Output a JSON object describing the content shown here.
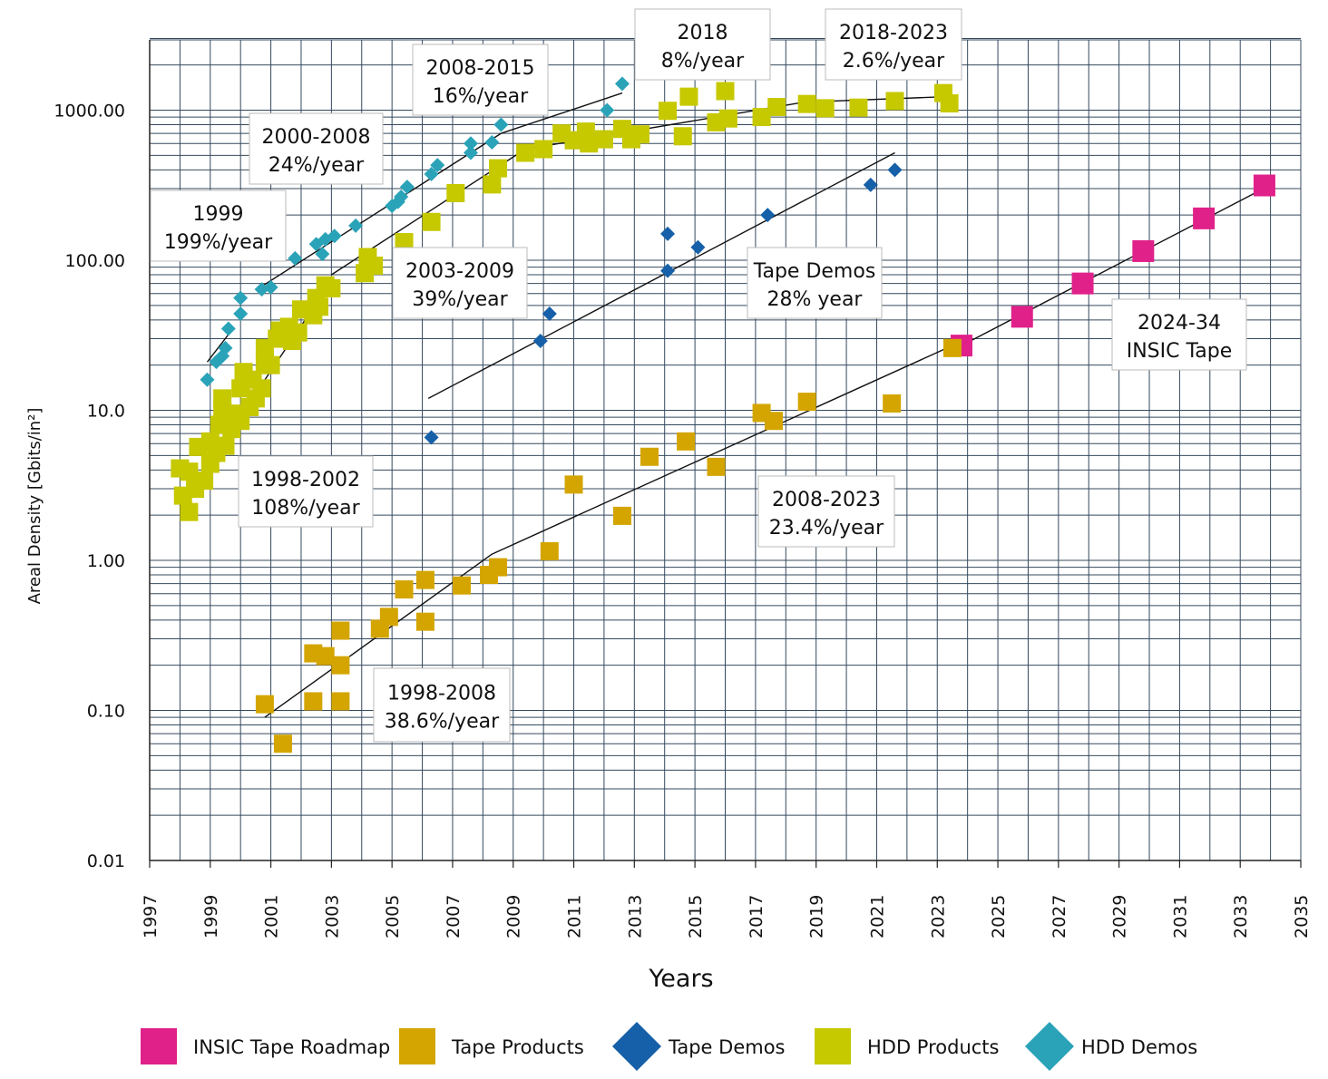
{
  "chart_data": {
    "type": "scatter",
    "title": "",
    "xlabel": "Years",
    "ylabel": "Areal Density [Gbits/in²]",
    "yscale": "log",
    "xlim": [
      1997,
      2035
    ],
    "ylim": [
      0.01,
      3000
    ],
    "grid": true,
    "legend_position": "bottom",
    "x_ticks": [
      1997,
      1999,
      2001,
      2003,
      2005,
      2007,
      2009,
      2011,
      2013,
      2015,
      2017,
      2019,
      2021,
      2023,
      2025,
      2027,
      2029,
      2031,
      2033,
      2035
    ],
    "y_ticks": [
      {
        "value": 0.01,
        "label": "0.01"
      },
      {
        "value": 0.1,
        "label": "0.10"
      },
      {
        "value": 1,
        "label": "1.00"
      },
      {
        "value": 10,
        "label": "10.0"
      },
      {
        "value": 100,
        "label": "100.00"
      },
      {
        "value": 1000,
        "label": "1000.00"
      }
    ],
    "series": [
      {
        "name": "INSIC Tape Roadmap",
        "color": "#e0218a",
        "marker": "square",
        "points": [
          [
            2023.8,
            27
          ],
          [
            2025.8,
            42
          ],
          [
            2027.8,
            70
          ],
          [
            2029.8,
            115
          ],
          [
            2031.8,
            190
          ],
          [
            2033.8,
            315
          ]
        ]
      },
      {
        "name": "Tape Products",
        "color": "#d4a500",
        "marker": "square",
        "points": [
          [
            2000.8,
            0.11
          ],
          [
            2001.4,
            0.06
          ],
          [
            2002.4,
            0.24
          ],
          [
            2002.4,
            0.115
          ],
          [
            2002.8,
            0.23
          ],
          [
            2003.3,
            0.2
          ],
          [
            2003.3,
            0.115
          ],
          [
            2003.3,
            0.34
          ],
          [
            2004.6,
            0.35
          ],
          [
            2004.9,
            0.42
          ],
          [
            2005.4,
            0.64
          ],
          [
            2006.1,
            0.74
          ],
          [
            2006.1,
            0.39
          ],
          [
            2007.3,
            0.68
          ],
          [
            2008.2,
            0.8
          ],
          [
            2008.5,
            0.9
          ],
          [
            2010.2,
            1.15
          ],
          [
            2011.0,
            3.2
          ],
          [
            2012.6,
            1.98
          ],
          [
            2013.5,
            4.9
          ],
          [
            2014.7,
            6.2
          ],
          [
            2015.7,
            4.2
          ],
          [
            2017.2,
            9.6
          ],
          [
            2017.6,
            8.5
          ],
          [
            2018.7,
            11.4
          ],
          [
            2021.5,
            11.1
          ],
          [
            2023.5,
            26
          ]
        ]
      },
      {
        "name": "Tape Demos",
        "color": "#1560a8",
        "marker": "diamond",
        "points": [
          [
            2006.3,
            6.6
          ],
          [
            2009.9,
            29
          ],
          [
            2010.2,
            44
          ],
          [
            2014.1,
            150
          ],
          [
            2014.1,
            85
          ],
          [
            2015.1,
            122
          ],
          [
            2017.4,
            200
          ],
          [
            2020.8,
            318
          ],
          [
            2021.6,
            400
          ]
        ]
      },
      {
        "name": "HDD Products",
        "color": "#c6c800",
        "marker": "square",
        "points": [
          [
            1998.0,
            4.1
          ],
          [
            1998.1,
            2.7
          ],
          [
            1998.3,
            2.1
          ],
          [
            1998.3,
            3.9
          ],
          [
            1998.5,
            3.0
          ],
          [
            1998.6,
            5.7
          ],
          [
            1998.8,
            3.4
          ],
          [
            1999.0,
            4.4
          ],
          [
            1999.0,
            6.2
          ],
          [
            1999.2,
            5.2
          ],
          [
            1999.3,
            8.0
          ],
          [
            1999.4,
            10.0
          ],
          [
            1999.4,
            12.0
          ],
          [
            1999.5,
            5.8
          ],
          [
            1999.7,
            7.5
          ],
          [
            1999.8,
            9.5
          ],
          [
            2000.0,
            8.5
          ],
          [
            2000.0,
            14.0
          ],
          [
            2000.1,
            18.0
          ],
          [
            2000.3,
            10.5
          ],
          [
            2000.4,
            16.0
          ],
          [
            2000.5,
            12.0
          ],
          [
            2000.7,
            14.0
          ],
          [
            2000.8,
            21.0
          ],
          [
            2000.8,
            26.0
          ],
          [
            2001.0,
            20.0
          ],
          [
            2001.2,
            30.0
          ],
          [
            2001.3,
            34.0
          ],
          [
            2001.6,
            36.0
          ],
          [
            2001.7,
            29.0
          ],
          [
            2001.9,
            33.0
          ],
          [
            2002.0,
            47.0
          ],
          [
            2002.4,
            43.0
          ],
          [
            2002.5,
            56.0
          ],
          [
            2002.6,
            49.0
          ],
          [
            2002.8,
            68.0
          ],
          [
            2003.0,
            65.0
          ],
          [
            2004.1,
            82.0
          ],
          [
            2004.2,
            105.0
          ],
          [
            2004.4,
            92.0
          ],
          [
            2005.4,
            132.0
          ],
          [
            2006.3,
            180.0
          ],
          [
            2007.1,
            280.0
          ],
          [
            2008.3,
            320.0
          ],
          [
            2008.5,
            410.0
          ],
          [
            2009.4,
            520.0
          ],
          [
            2010.0,
            550.0
          ],
          [
            2010.6,
            700.0
          ],
          [
            2011.0,
            630.0
          ],
          [
            2011.4,
            720.0
          ],
          [
            2011.5,
            600.0
          ],
          [
            2012.0,
            640.0
          ],
          [
            2012.6,
            750.0
          ],
          [
            2012.9,
            640.0
          ],
          [
            2013.2,
            690.0
          ],
          [
            2014.1,
            990.0
          ],
          [
            2014.6,
            670.0
          ],
          [
            2014.8,
            1230.0
          ],
          [
            2015.7,
            830.0
          ],
          [
            2016.0,
            1340.0
          ],
          [
            2016.1,
            880.0
          ],
          [
            2017.2,
            900.0
          ],
          [
            2017.7,
            1050.0
          ],
          [
            2018.7,
            1100.0
          ],
          [
            2019.3,
            1030.0
          ],
          [
            2020.4,
            1040.0
          ],
          [
            2021.6,
            1150.0
          ],
          [
            2023.2,
            1300.0
          ],
          [
            2023.4,
            1110.0
          ]
        ]
      },
      {
        "name": "HDD Demos",
        "color": "#2aa3b8",
        "marker": "diamond",
        "points": [
          [
            1998.9,
            16.0
          ],
          [
            1999.2,
            21.0
          ],
          [
            1999.4,
            23.0
          ],
          [
            1999.5,
            26.0
          ],
          [
            1999.6,
            35.0
          ],
          [
            2000.0,
            44.0
          ],
          [
            2000.0,
            56.0
          ],
          [
            2000.7,
            64.0
          ],
          [
            2001.0,
            66.0
          ],
          [
            2001.8,
            103.0
          ],
          [
            2002.5,
            128.0
          ],
          [
            2002.7,
            110.0
          ],
          [
            2002.8,
            138.0
          ],
          [
            2003.1,
            145.0
          ],
          [
            2003.8,
            170.0
          ],
          [
            2005.0,
            230.0
          ],
          [
            2005.2,
            245.0
          ],
          [
            2005.3,
            265.0
          ],
          [
            2005.5,
            308.0
          ],
          [
            2006.3,
            375.0
          ],
          [
            2006.5,
            430.0
          ],
          [
            2007.6,
            520.0
          ],
          [
            2007.6,
            600.0
          ],
          [
            2008.3,
            610.0
          ],
          [
            2008.6,
            800.0
          ],
          [
            2012.1,
            1000.0
          ],
          [
            2012.6,
            1500.0
          ]
        ]
      }
    ],
    "trend_lines": [
      {
        "points": [
          [
            1998.9,
            21
          ],
          [
            1999.7,
            34
          ]
        ]
      },
      {
        "points": [
          [
            1998.0,
            2.3
          ],
          [
            2002.9,
            68
          ]
        ]
      },
      {
        "points": [
          [
            2000.6,
            65
          ],
          [
            2008.6,
            700
          ]
        ]
      },
      {
        "points": [
          [
            2003.0,
            80
          ],
          [
            2009.4,
            550
          ]
        ]
      },
      {
        "points": [
          [
            2008.6,
            700
          ],
          [
            2012.6,
            1300
          ]
        ]
      },
      {
        "points": [
          [
            2009.4,
            550
          ],
          [
            2018.6,
            1130
          ]
        ]
      },
      {
        "points": [
          [
            2018.6,
            1130
          ],
          [
            2023.3,
            1230
          ]
        ]
      },
      {
        "points": [
          [
            2006.2,
            12
          ],
          [
            2021.6,
            520
          ]
        ]
      },
      {
        "points": [
          [
            2000.8,
            0.09
          ],
          [
            2008.3,
            1.1
          ]
        ]
      },
      {
        "points": [
          [
            2008.3,
            1.1
          ],
          [
            2023.5,
            27
          ]
        ]
      },
      {
        "points": [
          [
            2023.8,
            27
          ],
          [
            2033.9,
            310
          ]
        ]
      }
    ],
    "annotations": [
      {
        "line1": "2018",
        "line2": "8%/year"
      },
      {
        "line1": "2018-2023",
        "line2": "2.6%/year"
      },
      {
        "line1": "2008-2015",
        "line2": "16%/year"
      },
      {
        "line1": "2000-2008",
        "line2": "24%/year"
      },
      {
        "line1": "1999",
        "line2": "199%/year"
      },
      {
        "line1": "2003-2009",
        "line2": "39%/year"
      },
      {
        "line1": "Tape Demos",
        "line2": "28% year"
      },
      {
        "line1": "2024-34",
        "line2": "INSIC Tape"
      },
      {
        "line1": "1998-2002",
        "line2": "108%/year"
      },
      {
        "line1": "2008-2023",
        "line2": "23.4%/year"
      },
      {
        "line1": "1998-2008",
        "line2": "38.6%/year"
      }
    ]
  }
}
